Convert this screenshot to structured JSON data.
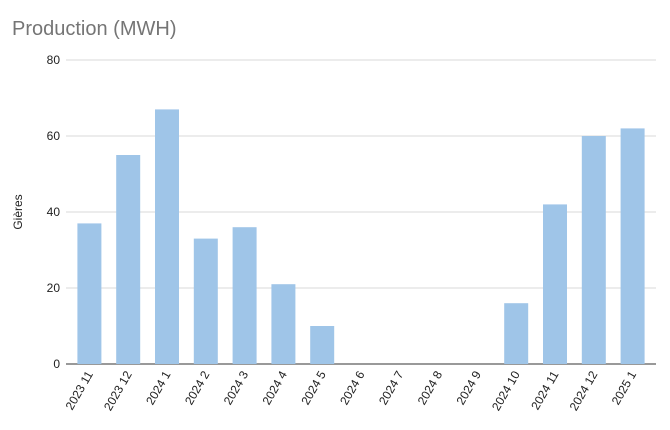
{
  "chart_data": {
    "type": "bar",
    "title": "Production (MWH)",
    "xlabel": "",
    "ylabel": "Gières",
    "ylim": [
      0,
      80
    ],
    "yticks": [
      0,
      20,
      40,
      60,
      80
    ],
    "grid": true,
    "legend": "none",
    "bar_color": "#9fc5e8",
    "categories": [
      "2023 11",
      "2023 12",
      "2024 1",
      "2024 2",
      "2024 3",
      "2024 4",
      "2024 5",
      "2024 6",
      "2024 7",
      "2024 8",
      "2024 9",
      "2024 10",
      "2024 11",
      "2024 12",
      "2025 1"
    ],
    "values": [
      37,
      55,
      67,
      33,
      36,
      21,
      10,
      0,
      0,
      0,
      0,
      16,
      42,
      60,
      62
    ]
  }
}
